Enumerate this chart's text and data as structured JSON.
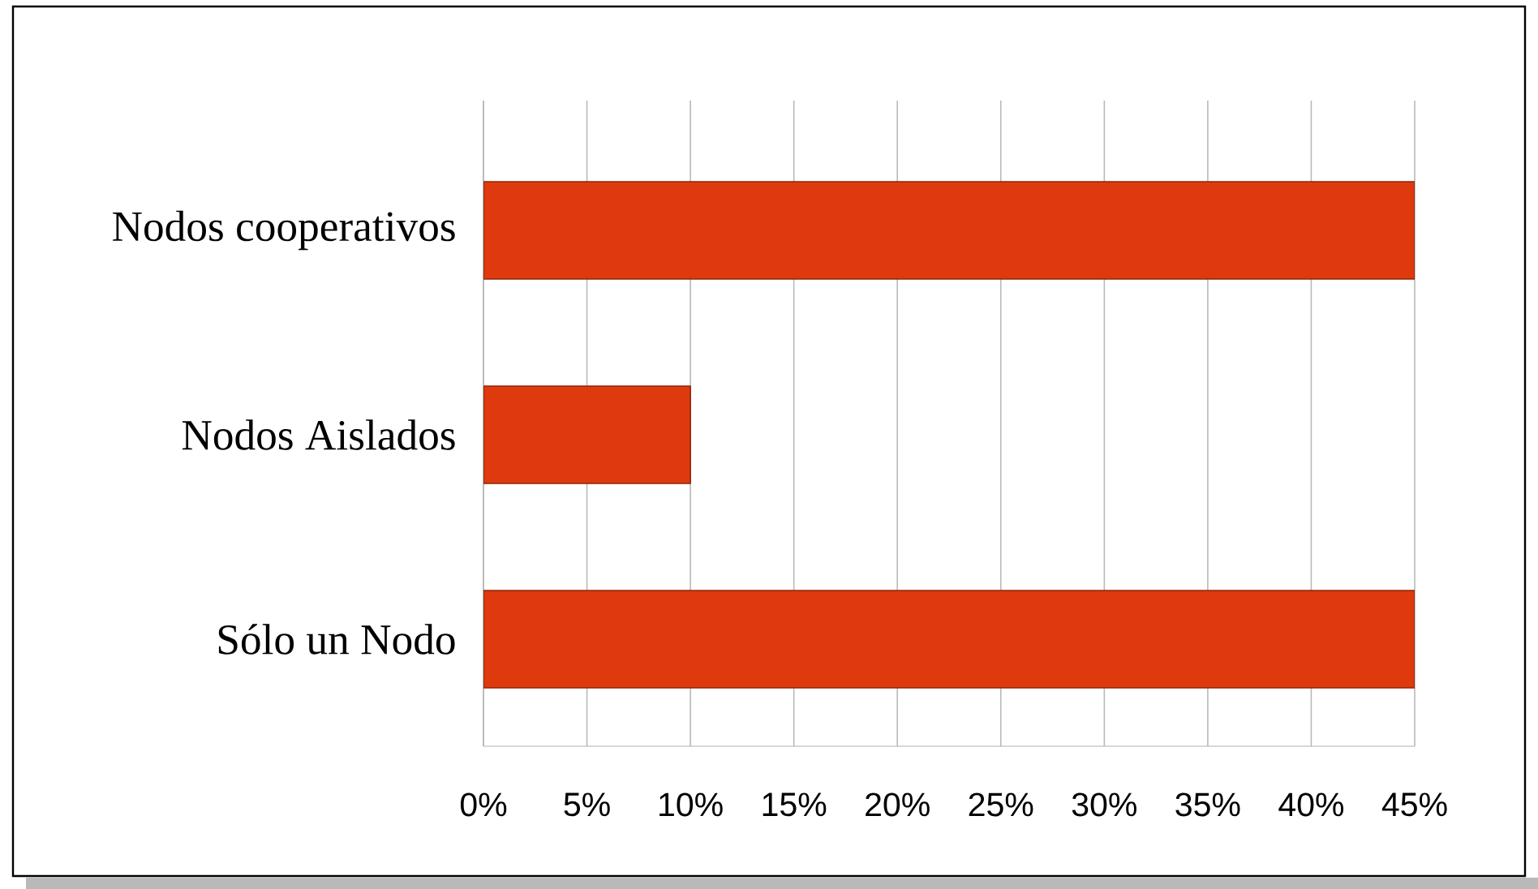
{
  "chart_data": {
    "type": "bar",
    "orientation": "horizontal",
    "categories": [
      "Nodos cooperativos",
      "Nodos Aislados",
      "Sólo un Nodo"
    ],
    "values": [
      45,
      10,
      45
    ],
    "color": "#de3a0e",
    "xlim": [
      0,
      45
    ],
    "xticks": [
      {
        "value": 0,
        "label": "0%"
      },
      {
        "value": 5,
        "label": "5%"
      },
      {
        "value": 10,
        "label": "10%"
      },
      {
        "value": 15,
        "label": "15%"
      },
      {
        "value": 20,
        "label": "20%"
      },
      {
        "value": 25,
        "label": "25%"
      },
      {
        "value": 30,
        "label": "30%"
      },
      {
        "value": 35,
        "label": "35%"
      },
      {
        "value": 40,
        "label": "40%"
      },
      {
        "value": 45,
        "label": "45%"
      }
    ],
    "grid": "x"
  }
}
